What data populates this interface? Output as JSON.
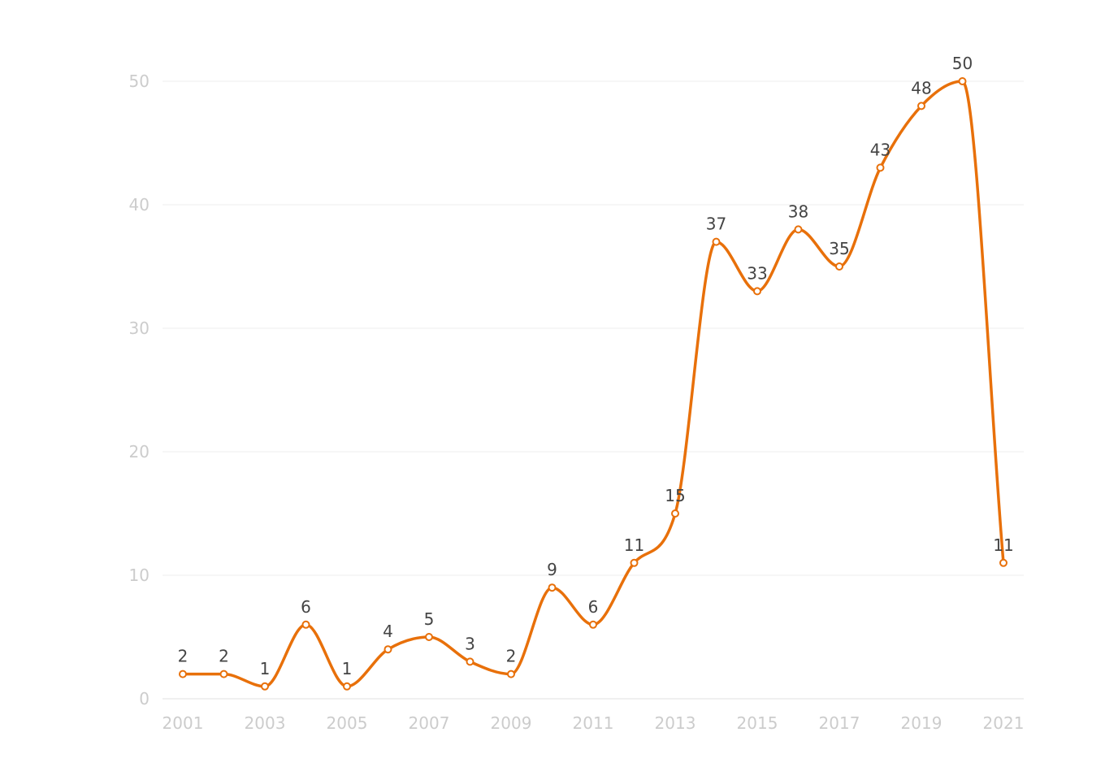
{
  "chart_data": {
    "type": "line",
    "title": "",
    "xlabel": "",
    "ylabel": "",
    "x": [
      2001,
      2002,
      2003,
      2004,
      2005,
      2006,
      2007,
      2008,
      2009,
      2010,
      2011,
      2012,
      2013,
      2014,
      2015,
      2016,
      2017,
      2018,
      2019,
      2020,
      2021
    ],
    "values": [
      2,
      2,
      1,
      6,
      1,
      4,
      5,
      3,
      2,
      9,
      6,
      11,
      15,
      37,
      33,
      38,
      35,
      43,
      48,
      50,
      11
    ],
    "x_tick_labels": [
      "2001",
      "2003",
      "2005",
      "2007",
      "2009",
      "2011",
      "2013",
      "2015",
      "2017",
      "2019",
      "2021"
    ],
    "y_tick_labels": [
      "0",
      "10",
      "20",
      "30",
      "40",
      "50"
    ],
    "ylim": [
      0,
      50
    ],
    "grid": true,
    "smooth": true,
    "color": "#e8700a"
  }
}
